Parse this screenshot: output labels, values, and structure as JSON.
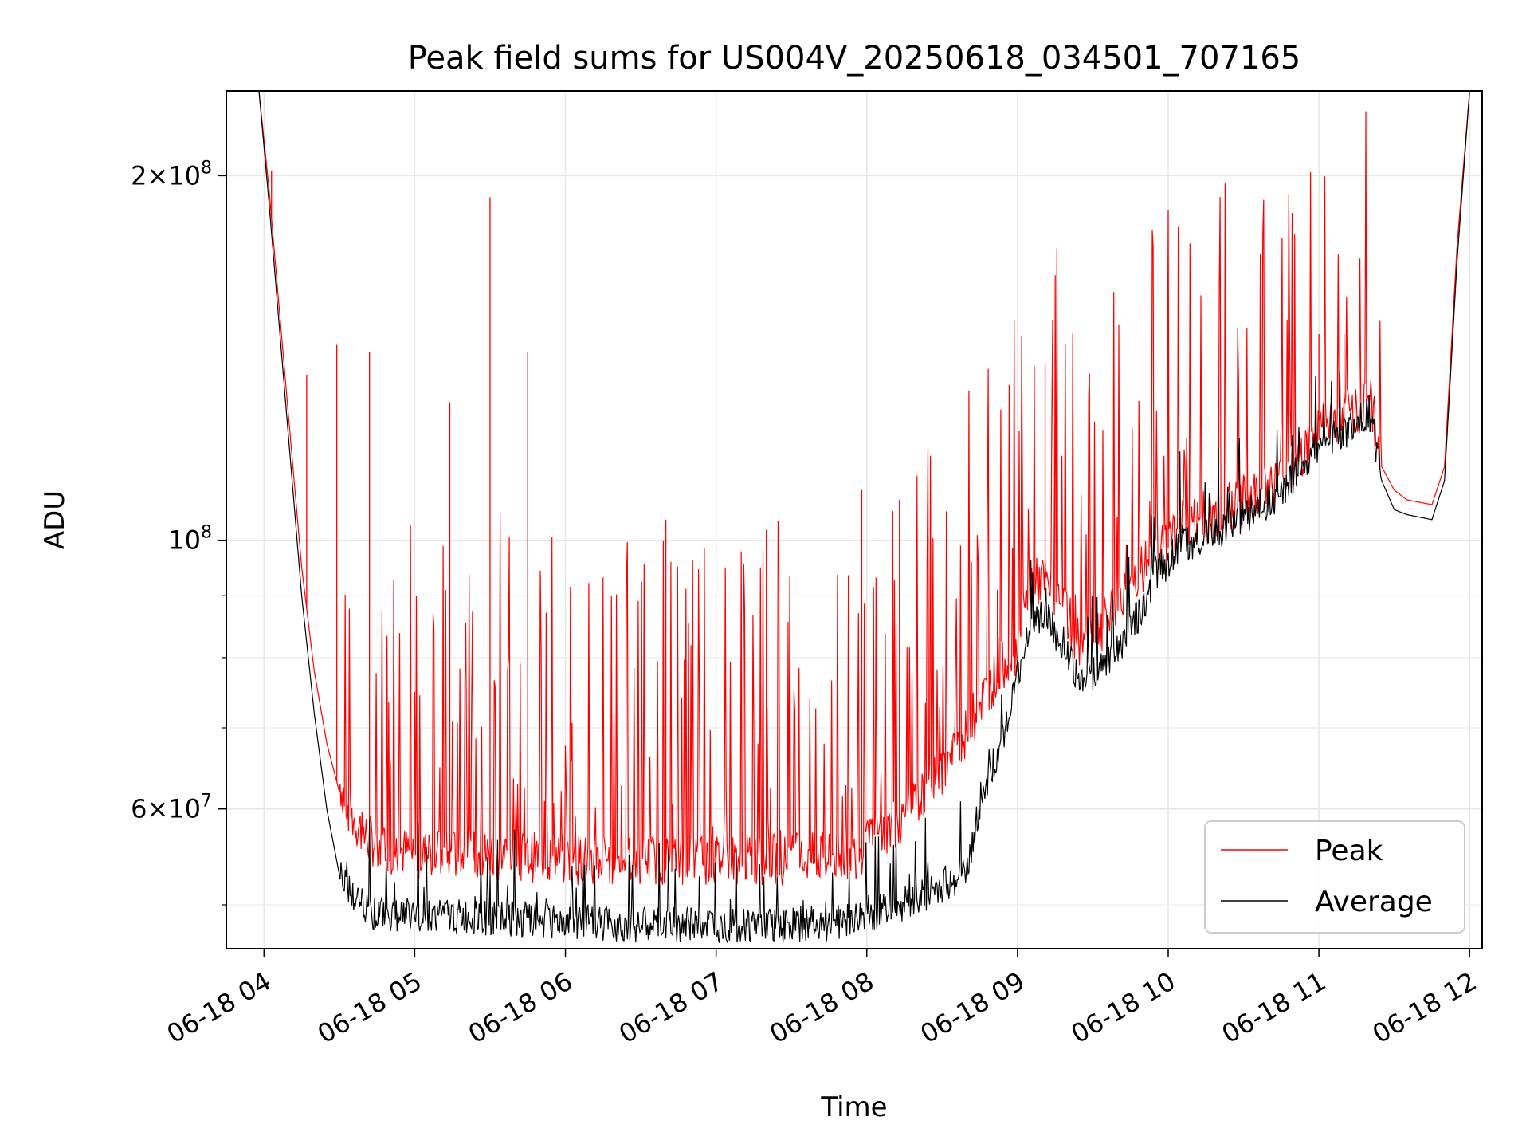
{
  "chart_data": {
    "type": "line",
    "title": "Peak field sums for US004V_20250618_034501_707165",
    "xlabel": "Time",
    "ylabel": "ADU",
    "yscale": "log",
    "ylim": [
      46000000,
      235000000
    ],
    "xlim": [
      "2025-06-18T03:45",
      "2025-06-18T12:05"
    ],
    "x_tick_labels": [
      "06-18 04",
      "06-18 05",
      "06-18 06",
      "06-18 07",
      "06-18 08",
      "06-18 09",
      "06-18 10",
      "06-18 11",
      "06-18 12"
    ],
    "y_tick_labels": [
      {
        "value": 200000000,
        "base": "2",
        "exp": "8"
      },
      {
        "value": 100000000,
        "base": "",
        "exp": "8"
      },
      {
        "value": 60000000,
        "base": "6",
        "exp": "7"
      }
    ],
    "grid": true,
    "legend": {
      "placement": "lower-right",
      "entries": [
        "Peak",
        "Average"
      ]
    },
    "series": [
      {
        "name": "Peak",
        "color": "#ff0000",
        "x": [
          "2025-06-18T03:45",
          "2025-06-18T03:58",
          "2025-06-18T04:02",
          "2025-06-18T04:05",
          "2025-06-18T04:10",
          "2025-06-18T04:15",
          "2025-06-18T04:20",
          "2025-06-18T04:25",
          "2025-06-18T04:30",
          "2025-06-18T04:35",
          "2025-06-18T04:40",
          "2025-06-18T04:45",
          "2025-06-18T05:00",
          "2025-06-18T05:30",
          "2025-06-18T06:00",
          "2025-06-18T06:30",
          "2025-06-18T07:00",
          "2025-06-18T07:30",
          "2025-06-18T07:55",
          "2025-06-18T08:00",
          "2025-06-18T08:15",
          "2025-06-18T08:30",
          "2025-06-18T08:40",
          "2025-06-18T08:45",
          "2025-06-18T08:50",
          "2025-06-18T08:55",
          "2025-06-18T09:00",
          "2025-06-18T09:05",
          "2025-06-18T09:10",
          "2025-06-18T09:20",
          "2025-06-18T09:25",
          "2025-06-18T09:35",
          "2025-06-18T09:45",
          "2025-06-18T09:55",
          "2025-06-18T10:05",
          "2025-06-18T10:15",
          "2025-06-18T10:30",
          "2025-06-18T10:45",
          "2025-06-18T11:00",
          "2025-06-18T11:10",
          "2025-06-18T11:20",
          "2025-06-18T11:25",
          "2025-06-18T11:30",
          "2025-06-18T11:35",
          "2025-06-18T11:45",
          "2025-06-18T11:50",
          "2025-06-18T11:55",
          "2025-06-18T12:00",
          "2025-06-18T12:05"
        ],
        "y": [
          235000000,
          235000000,
          195000000,
          165000000,
          125000000,
          95000000,
          78000000,
          68000000,
          62000000,
          58000000,
          56000000,
          55000000,
          54000000,
          54000000,
          53500000,
          53500000,
          53500000,
          53500000,
          54000000,
          55000000,
          58000000,
          63000000,
          68000000,
          72000000,
          75000000,
          78000000,
          80000000,
          90000000,
          91000000,
          85000000,
          80000000,
          84000000,
          90000000,
          96000000,
          101000000,
          102000000,
          106000000,
          110000000,
          121000000,
          124000000,
          129000000,
          115000000,
          110000000,
          108000000,
          107000000,
          115000000,
          175000000,
          235000000,
          235000000
        ],
        "spikes": [
          {
            "x": "2025-06-18T04:03",
            "y": 202000000
          },
          {
            "x": "2025-06-18T04:17",
            "y": 137000000
          },
          {
            "x": "2025-06-18T04:29",
            "y": 145000000
          },
          {
            "x": "2025-06-18T04:42",
            "y": 143000000
          },
          {
            "x": "2025-06-18T05:14",
            "y": 130000000
          },
          {
            "x": "2025-06-18T05:30",
            "y": 192000000
          },
          {
            "x": "2025-06-18T05:45",
            "y": 143000000
          },
          {
            "x": "2025-06-18T06:40",
            "y": 104000000
          },
          {
            "x": "2025-06-18T07:20",
            "y": 102000000
          },
          {
            "x": "2025-06-18T07:58",
            "y": 110000000
          },
          {
            "x": "2025-06-18T08:13",
            "y": 108000000
          },
          {
            "x": "2025-06-18T08:52",
            "y": 91000000
          },
          {
            "x": "2025-06-18T09:11",
            "y": 140000000
          },
          {
            "x": "2025-06-18T10:00",
            "y": 152000000
          },
          {
            "x": "2025-06-18T11:00",
            "y": 148000000
          },
          {
            "x": "2025-06-18T11:10",
            "y": 148000000
          }
        ]
      },
      {
        "name": "Average",
        "color": "#000000",
        "x": [
          "2025-06-18T03:45",
          "2025-06-18T03:58",
          "2025-06-18T04:02",
          "2025-06-18T04:05",
          "2025-06-18T04:10",
          "2025-06-18T04:15",
          "2025-06-18T04:20",
          "2025-06-18T04:25",
          "2025-06-18T04:30",
          "2025-06-18T04:35",
          "2025-06-18T04:40",
          "2025-06-18T04:45",
          "2025-06-18T05:00",
          "2025-06-18T05:30",
          "2025-06-18T06:00",
          "2025-06-18T06:30",
          "2025-06-18T07:00",
          "2025-06-18T07:30",
          "2025-06-18T07:55",
          "2025-06-18T08:00",
          "2025-06-18T08:15",
          "2025-06-18T08:30",
          "2025-06-18T08:40",
          "2025-06-18T08:45",
          "2025-06-18T08:50",
          "2025-06-18T08:55",
          "2025-06-18T09:00",
          "2025-06-18T09:05",
          "2025-06-18T09:10",
          "2025-06-18T09:20",
          "2025-06-18T09:25",
          "2025-06-18T09:35",
          "2025-06-18T09:45",
          "2025-06-18T09:55",
          "2025-06-18T10:05",
          "2025-06-18T10:15",
          "2025-06-18T10:30",
          "2025-06-18T10:45",
          "2025-06-18T11:00",
          "2025-06-18T11:10",
          "2025-06-18T11:20",
          "2025-06-18T11:25",
          "2025-06-18T11:30",
          "2025-06-18T11:35",
          "2025-06-18T11:45",
          "2025-06-18T11:50",
          "2025-06-18T11:55",
          "2025-06-18T12:00",
          "2025-06-18T12:05"
        ],
        "y": [
          235000000,
          235000000,
          190000000,
          160000000,
          120000000,
          90000000,
          72000000,
          60000000,
          53000000,
          50000000,
          49000000,
          48500000,
          48500000,
          48000000,
          47800000,
          47500000,
          47500000,
          47500000,
          47800000,
          48500000,
          49500000,
          51000000,
          52500000,
          60000000,
          64000000,
          68000000,
          76000000,
          84000000,
          86000000,
          80000000,
          75000000,
          78000000,
          83000000,
          92000000,
          98000000,
          99000000,
          103000000,
          108000000,
          118000000,
          121000000,
          126000000,
          112000000,
          106000000,
          105000000,
          104000000,
          112000000,
          170000000,
          235000000,
          235000000
        ]
      }
    ]
  }
}
